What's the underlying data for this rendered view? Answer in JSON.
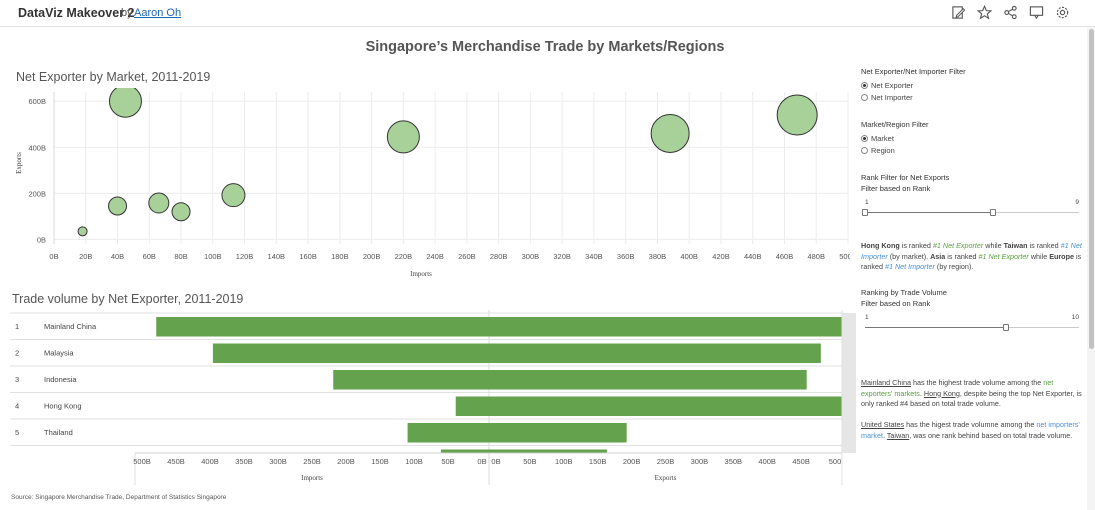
{
  "header": {
    "app_title": "DataViz Makeover 2",
    "by": "by",
    "author": "Aaron Oh",
    "icons": [
      "edit-icon",
      "star-icon",
      "share-icon",
      "comment-icon",
      "settings-icon"
    ]
  },
  "dashboard_title": "Singapore’s Merchandise Trade by Markets/Regions",
  "bubble_chart": {
    "title": "Net Exporter by Market, 2011-2019",
    "chart_data": {
      "type": "scatter",
      "title": "Net Exporter by Market, 2011-2019",
      "xlabel": "Imports",
      "ylabel": "Exports",
      "xlim": [
        0,
        500
      ],
      "ylim": [
        -20,
        640
      ],
      "x_ticks": [
        "0B",
        "20B",
        "40B",
        "60B",
        "80B",
        "100B",
        "120B",
        "140B",
        "160B",
        "180B",
        "200B",
        "220B",
        "240B",
        "260B",
        "280B",
        "300B",
        "320B",
        "340B",
        "360B",
        "380B",
        "400B",
        "420B",
        "440B",
        "460B",
        "480B",
        "500B"
      ],
      "y_ticks": [
        "0B",
        "200B",
        "400B",
        "600B"
      ],
      "grid": true,
      "points": [
        {
          "x": 18,
          "y": 35,
          "size": 0.45
        },
        {
          "x": 45,
          "y": 600,
          "size": 1.6
        },
        {
          "x": 40,
          "y": 145,
          "size": 0.9
        },
        {
          "x": 66,
          "y": 158,
          "size": 1.0
        },
        {
          "x": 80,
          "y": 120,
          "size": 0.9
        },
        {
          "x": 113,
          "y": 192,
          "size": 1.15
        },
        {
          "x": 220,
          "y": 445,
          "size": 1.6
        },
        {
          "x": 388,
          "y": 460,
          "size": 1.9
        },
        {
          "x": 468,
          "y": 540,
          "size": 2.0
        }
      ],
      "color": "#a8d19a",
      "stroke": "#333333"
    }
  },
  "bar_chart": {
    "title": "Trade volume by Net Exporter, 2011-2019",
    "chart_data": {
      "type": "bar",
      "orientation": "horizontal-diverging",
      "categories": [
        "Mainland China",
        "Malaysia",
        "Indonesia",
        "Hong Kong",
        "Thailand"
      ],
      "ranks": [
        "1",
        "2",
        "3",
        "4",
        "5"
      ],
      "imports": [
        470,
        390,
        220,
        47,
        115
      ],
      "exports": [
        500,
        470,
        450,
        500,
        195
      ],
      "partial_next_bar": {
        "imports": 68,
        "exports": 167
      },
      "xlabel_left": "Imports",
      "xlabel_right": "Exports",
      "left_ticks": [
        "500B",
        "450B",
        "400B",
        "350B",
        "300B",
        "250B",
        "200B",
        "150B",
        "100B",
        "50B",
        "0B"
      ],
      "right_ticks": [
        "0B",
        "50B",
        "100B",
        "150B",
        "200B",
        "250B",
        "300B",
        "350B",
        "400B",
        "450B",
        "500"
      ],
      "xlim": [
        0,
        500
      ],
      "color": "#64a24d"
    }
  },
  "panel": {
    "filter1": {
      "title": "Net Exporter/Net Importer Filter",
      "options": [
        "Net Exporter",
        "Net Importer"
      ],
      "selected": 0
    },
    "filter2": {
      "title": "Market/Region Filter",
      "options": [
        "Market",
        "Region"
      ],
      "selected": 0
    },
    "rank1": {
      "title": "Rank Filter for Net Exports",
      "subtitle": "Filter based on Rank",
      "min": "1",
      "max": "9",
      "value_fraction": 0.6
    },
    "note1": {
      "p1": "Hong Kong",
      "p2": " is ranked ",
      "p3": "#1 ",
      "p4": "Net Exporter",
      "p5": " while ",
      "p6": "Taiwan",
      "p7": " is ranked ",
      "p8": "#1 ",
      "p9": "Net Importer",
      "p10": " (by market). ",
      "p11": "Asia",
      "p12": " is ranked ",
      "p13": "#1 ",
      "p14": "Net Exporter",
      "p15": " while ",
      "p16": "Europe",
      "p17": " is ranked ",
      "p18": "#1 ",
      "p19": "Net Importer",
      "p20": " (by region)."
    },
    "rank2": {
      "title": "Ranking by Trade Volume",
      "subtitle": "Filter based on Rank",
      "min": "1",
      "max": "10",
      "value_fraction": 0.66
    },
    "note2": {
      "p1": "Mainland China",
      "p2": " has the highest trade volume among the ",
      "p3": "net exporters' markets",
      "p4": ". ",
      "p5": "Hong Kong",
      "p6": ", despite being the top Net Exporter, is only ranked #4 based on total trade volume."
    },
    "note3": {
      "p1": "United States",
      "p2": " has the higest trade volumne among the ",
      "p3": "net importers' market",
      "p4": ". ",
      "p5": "Taiwan",
      "p6": ", was one rank behind based on total trade volume."
    }
  },
  "source": "Source: Singapore Merchandise Trade, Department of Statistics Singapore"
}
